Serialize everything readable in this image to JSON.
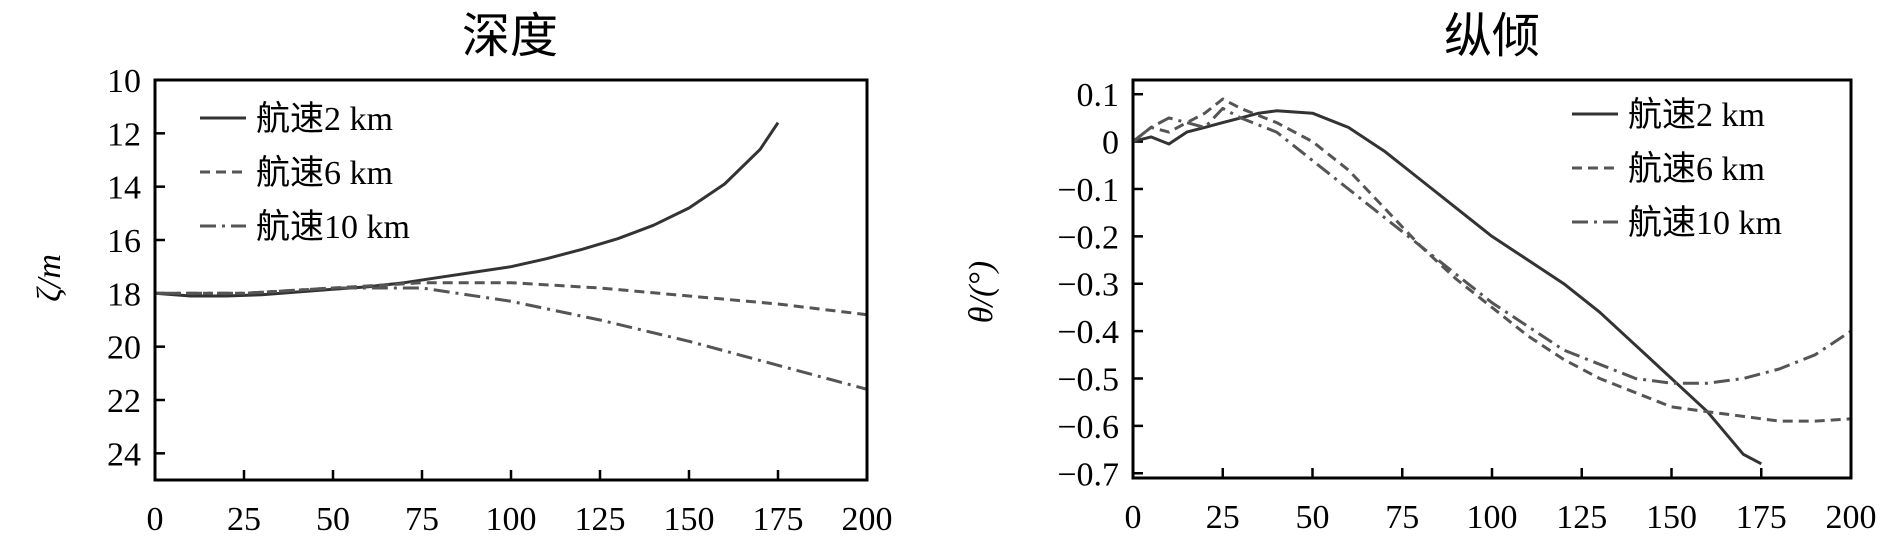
{
  "chart_data": [
    {
      "type": "line",
      "title": "深度",
      "xlabel": "",
      "ylabel": "ζ/m",
      "xlim": [
        0,
        200
      ],
      "ylim": [
        25,
        10
      ],
      "y_inverted": true,
      "xticks": [
        0,
        25,
        50,
        75,
        100,
        125,
        150,
        175,
        200
      ],
      "yticks": [
        10,
        12,
        14,
        16,
        18,
        20,
        22,
        24
      ],
      "legend_position": "top-left",
      "series": [
        {
          "name": "航速2 km",
          "style": "solid",
          "color": "#333333",
          "x": [
            0,
            10,
            20,
            30,
            40,
            50,
            60,
            70,
            80,
            90,
            100,
            110,
            120,
            130,
            140,
            150,
            160,
            170,
            175
          ],
          "y": [
            18.0,
            18.1,
            18.1,
            18.05,
            17.95,
            17.85,
            17.75,
            17.6,
            17.4,
            17.2,
            17.0,
            16.7,
            16.35,
            15.95,
            15.45,
            14.8,
            13.9,
            12.6,
            11.6
          ]
        },
        {
          "name": "航速6 km",
          "style": "dashed",
          "color": "#555555",
          "x": [
            0,
            25,
            50,
            75,
            100,
            125,
            150,
            175,
            200
          ],
          "y": [
            18.0,
            18.0,
            17.8,
            17.6,
            17.6,
            17.8,
            18.1,
            18.4,
            18.8
          ]
        },
        {
          "name": "航速10 km",
          "style": "dashdot",
          "color": "#555555",
          "x": [
            0,
            25,
            50,
            75,
            100,
            125,
            150,
            175,
            200
          ],
          "y": [
            18.0,
            18.0,
            17.8,
            17.8,
            18.3,
            19.0,
            19.8,
            20.7,
            21.6
          ]
        }
      ]
    },
    {
      "type": "line",
      "title": "纵倾",
      "xlabel": "",
      "ylabel": "θ/(°)",
      "xlim": [
        0,
        200
      ],
      "ylim": [
        -0.71,
        0.13
      ],
      "xticks": [
        0,
        25,
        50,
        75,
        100,
        125,
        150,
        175,
        200
      ],
      "yticks": [
        0.1,
        0,
        -0.1,
        -0.2,
        -0.3,
        -0.4,
        -0.5,
        -0.6,
        -0.7
      ],
      "ytick_labels": [
        "0.1",
        "0",
        "−0.1",
        "−0.2",
        "−0.3",
        "−0.4",
        "−0.5",
        "−0.6",
        "−0.7"
      ],
      "legend_position": "top-right",
      "series": [
        {
          "name": "航速2 km",
          "style": "solid",
          "color": "#333333",
          "x": [
            0,
            5,
            10,
            15,
            20,
            25,
            30,
            35,
            40,
            50,
            60,
            70,
            80,
            90,
            100,
            110,
            120,
            130,
            140,
            150,
            160,
            170,
            175
          ],
          "y": [
            0,
            0.01,
            -0.005,
            0.02,
            0.03,
            0.04,
            0.05,
            0.06,
            0.065,
            0.06,
            0.03,
            -0.02,
            -0.08,
            -0.14,
            -0.2,
            -0.25,
            -0.3,
            -0.36,
            -0.43,
            -0.5,
            -0.57,
            -0.66,
            -0.68
          ]
        },
        {
          "name": "航速6 km",
          "style": "dashed",
          "color": "#555555",
          "x": [
            0,
            5,
            10,
            15,
            20,
            25,
            30,
            40,
            50,
            60,
            70,
            80,
            90,
            100,
            110,
            120,
            130,
            140,
            150,
            160,
            170,
            180,
            190,
            200
          ],
          "y": [
            0,
            0.03,
            0.02,
            0.04,
            0.06,
            0.09,
            0.07,
            0.04,
            0.0,
            -0.06,
            -0.14,
            -0.22,
            -0.29,
            -0.35,
            -0.41,
            -0.46,
            -0.5,
            -0.53,
            -0.56,
            -0.57,
            -0.58,
            -0.59,
            -0.59,
            -0.585
          ]
        },
        {
          "name": "航速10 km",
          "style": "dashdot",
          "color": "#555555",
          "x": [
            0,
            5,
            10,
            15,
            20,
            25,
            30,
            40,
            50,
            60,
            70,
            80,
            90,
            100,
            110,
            120,
            130,
            140,
            150,
            160,
            170,
            180,
            190,
            200
          ],
          "y": [
            0,
            0.03,
            0.05,
            0.04,
            0.03,
            0.07,
            0.05,
            0.02,
            -0.04,
            -0.1,
            -0.16,
            -0.22,
            -0.28,
            -0.34,
            -0.39,
            -0.44,
            -0.47,
            -0.5,
            -0.51,
            -0.51,
            -0.5,
            -0.48,
            -0.45,
            -0.4
          ]
        }
      ]
    }
  ]
}
